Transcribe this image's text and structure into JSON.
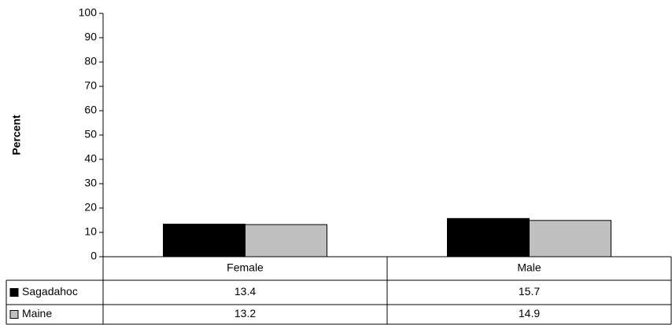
{
  "chart_data": {
    "type": "bar",
    "y_label": "Percent",
    "categories": [
      "Female",
      "Male"
    ],
    "series": [
      {
        "name": "Sagadahoc",
        "color": "#000000",
        "values": [
          13.4,
          15.7
        ]
      },
      {
        "name": "Maine",
        "color": "#c0c0c0",
        "values": [
          13.2,
          14.9
        ]
      }
    ],
    "ylim": [
      0,
      100
    ],
    "yticks": [
      0,
      10,
      20,
      30,
      40,
      50,
      60,
      70,
      80,
      90,
      100
    ],
    "grid": false,
    "data_table": true
  }
}
